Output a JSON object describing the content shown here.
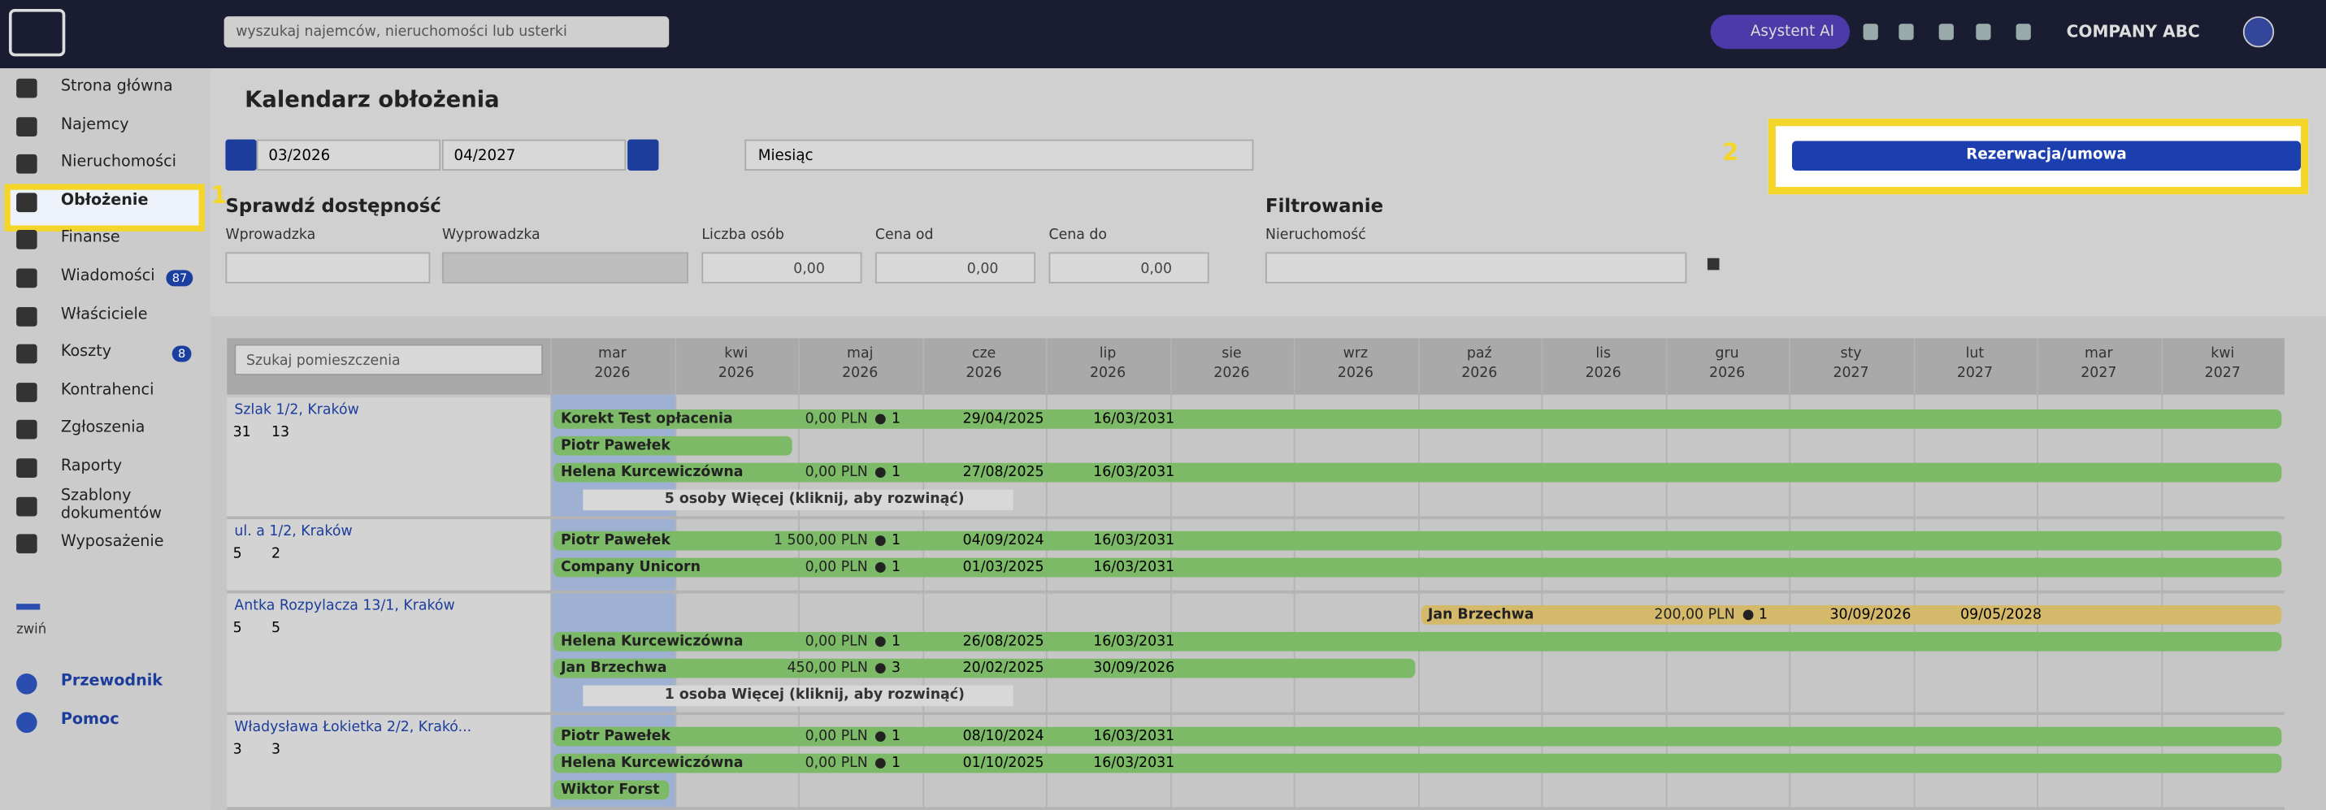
{
  "header": {
    "search_placeholder": "wyszukaj najemców, nieruchomości lub usterki",
    "assistant": "Asystent AI",
    "company": "COMPANY ABC"
  },
  "sidebar": {
    "items": [
      {
        "label": "Strona główna"
      },
      {
        "label": "Najemcy"
      },
      {
        "label": "Nieruchomości"
      },
      {
        "label": "Obłożenie",
        "selected": true
      },
      {
        "label": "Finanse"
      },
      {
        "label": "Wiadomości",
        "badge": "87"
      },
      {
        "label": "Właściciele"
      },
      {
        "label": "Koszty",
        "badge": "8"
      },
      {
        "label": "Kontrahenci"
      },
      {
        "label": "Zgłoszenia"
      },
      {
        "label": "Raporty"
      },
      {
        "label": "Szablony dokumentów"
      },
      {
        "label": "Wyposażenie"
      }
    ],
    "collapse": "zwiń",
    "links": [
      "Przewodnik",
      "Pomoc"
    ]
  },
  "annotations": [
    "1",
    "2"
  ],
  "page": {
    "title": "Kalendarz obłożenia",
    "date_from": "03/2026",
    "date_to": "04/2027",
    "view": "Miesiąc",
    "new_button": "Rezerwacja/umowa"
  },
  "availability": {
    "title": "Sprawdź dostępność",
    "fields": [
      {
        "label": "Wprowadzka"
      },
      {
        "label": "Wyprowadzka"
      },
      {
        "label": "Liczba osób",
        "value": "0,00"
      },
      {
        "label": "Cena od",
        "value": "0,00"
      },
      {
        "label": "Cena do",
        "value": "0,00"
      }
    ]
  },
  "filter": {
    "title": "Filtrowanie",
    "field": "Nieruchomość"
  },
  "calendar": {
    "room_search": "Szukaj pomieszczenia",
    "months": [
      {
        "m": "mar",
        "y": "2026"
      },
      {
        "m": "kwi",
        "y": "2026"
      },
      {
        "m": "maj",
        "y": "2026"
      },
      {
        "m": "cze",
        "y": "2026"
      },
      {
        "m": "lip",
        "y": "2026"
      },
      {
        "m": "sie",
        "y": "2026"
      },
      {
        "m": "wrz",
        "y": "2026"
      },
      {
        "m": "paź",
        "y": "2026"
      },
      {
        "m": "lis",
        "y": "2026"
      },
      {
        "m": "gru",
        "y": "2026"
      },
      {
        "m": "sty",
        "y": "2027"
      },
      {
        "m": "lut",
        "y": "2027"
      },
      {
        "m": "mar",
        "y": "2027"
      },
      {
        "m": "kwi",
        "y": "2027"
      }
    ],
    "properties": [
      {
        "name": "Szlak 1/2, Kraków",
        "rooms": "31",
        "persons": "13",
        "rows": [
          {
            "tenant": "Korekt Test opłacenia",
            "price": "0,00 PLN",
            "people": "1",
            "check_in": "29/04/2025",
            "check_out": "16/03/2031",
            "color": "#7dba68"
          },
          {
            "tenant": "Piotr Pawełek",
            "color": "#7dba68"
          },
          {
            "tenant": "Helena Kurcewiczówna",
            "price": "0,00 PLN",
            "people": "1",
            "check_in": "27/08/2025",
            "check_out": "16/03/2031",
            "color": "#7dba68"
          },
          {
            "more": "5 osoby Więcej (kliknij, aby rozwinąć)"
          }
        ]
      },
      {
        "name": "ul. a 1/2, Kraków",
        "rooms": "5",
        "persons": "2",
        "rows": [
          {
            "tenant": "Piotr Pawełek",
            "price": "1 500,00 PLN",
            "people": "1",
            "check_in": "04/09/2024",
            "check_out": "16/03/2031",
            "color": "#7dba68"
          },
          {
            "tenant": "Company Unicorn",
            "price": "0,00 PLN",
            "people": "1",
            "check_in": "01/03/2025",
            "check_out": "16/03/2031",
            "color": "#7dba68"
          }
        ]
      },
      {
        "name": "Antka Rozpylacza 13/1, Kraków",
        "rooms": "5",
        "persons": "5",
        "rows": [
          {
            "tenant": "Jan Brzechwa",
            "price": "200,00 PLN",
            "people": "1",
            "check_in": "30/09/2026",
            "check_out": "09/05/2028",
            "color": "#d4b96a"
          },
          {
            "tenant": "Helena Kurcewiczówna",
            "price": "0,00 PLN",
            "people": "1",
            "check_in": "26/08/2025",
            "check_out": "16/03/2031",
            "color": "#7dba68"
          },
          {
            "tenant": "Jan Brzechwa",
            "price": "450,00 PLN",
            "people": "3",
            "check_in": "20/02/2025",
            "check_out": "30/09/2026",
            "color": "#7dba68"
          },
          {
            "more": "1 osoba Więcej (kliknij, aby rozwinąć)"
          }
        ]
      },
      {
        "name": "Władysława Łokietka 2/2, Krakó...",
        "rooms": "3",
        "persons": "3",
        "rows": [
          {
            "tenant": "Piotr Pawełek",
            "price": "0,00 PLN",
            "people": "1",
            "check_in": "08/10/2024",
            "check_out": "16/03/2031",
            "color": "#7dba68"
          },
          {
            "tenant": "Helena Kurcewiczówna",
            "price": "0,00 PLN",
            "people": "1",
            "check_in": "01/10/2025",
            "check_out": "16/03/2031",
            "color": "#7dba68"
          },
          {
            "tenant": "Wiktor Forst",
            "color": "#7dba68"
          }
        ]
      }
    ]
  }
}
